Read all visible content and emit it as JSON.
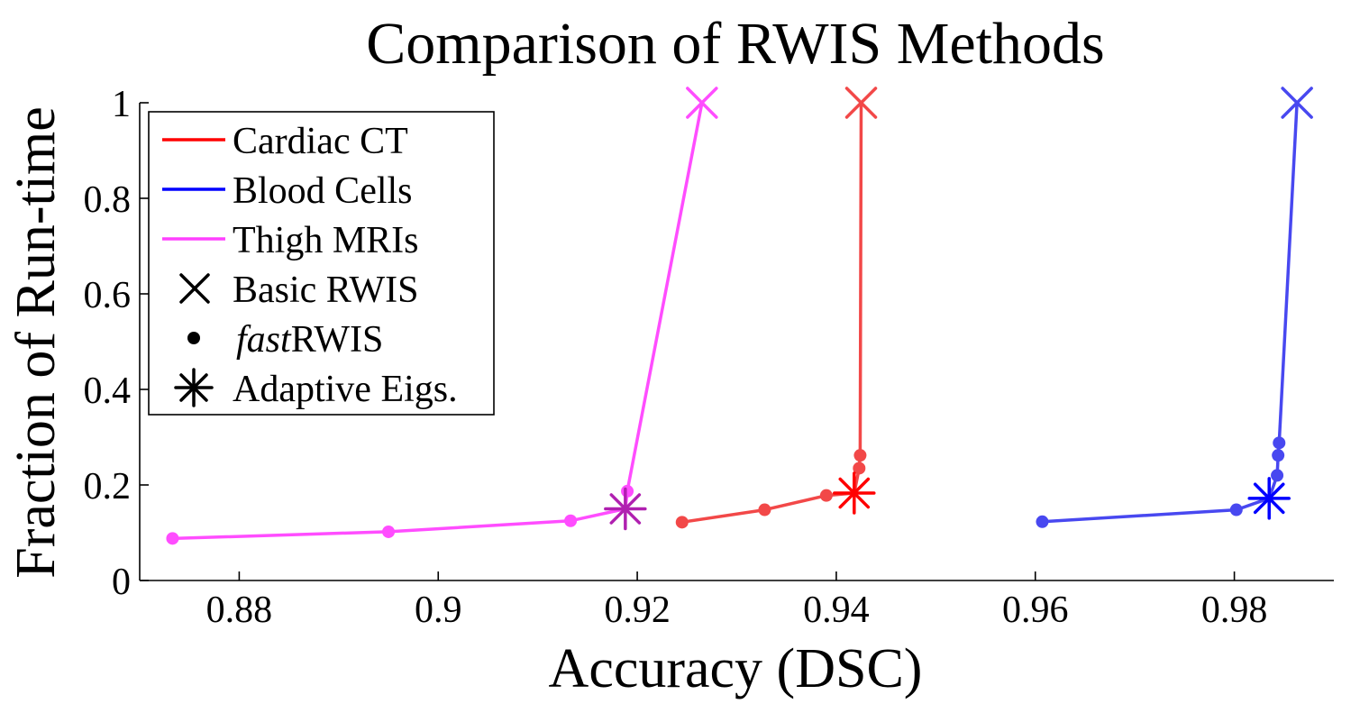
{
  "chart_data": {
    "type": "line",
    "title": "Comparison of RWIS Methods",
    "xlabel": "Accuracy (DSC)",
    "ylabel": "Fraction of Run-time",
    "xlim": [
      0.87,
      0.99
    ],
    "ylim": [
      0,
      1
    ],
    "xticks": [
      0.88,
      0.9,
      0.92,
      0.94,
      0.96,
      0.98
    ],
    "xtick_labels": [
      "0.88",
      "0.9",
      "0.92",
      "0.94",
      "0.96",
      "0.98"
    ],
    "yticks": [
      0,
      0.2,
      0.4,
      0.6,
      0.8,
      1
    ],
    "ytick_labels": [
      "0",
      "0.2",
      "0.4",
      "0.6",
      "0.8",
      "1"
    ],
    "grid": false,
    "legend_position": "top-left",
    "legend": [
      {
        "label": "Cardiac CT",
        "kind": "line",
        "color": "#ff0000"
      },
      {
        "label": "Blood Cells",
        "kind": "line",
        "color": "#0000ff"
      },
      {
        "label": "Thigh MRIs",
        "kind": "line",
        "color": "#ff40ff"
      },
      {
        "label": "Basic RWIS",
        "kind": "x-marker",
        "color": "#000000"
      },
      {
        "label_italic": "fast",
        "label": "RWIS",
        "kind": "dot-marker",
        "color": "#000000"
      },
      {
        "label": "Adaptive Eigs.",
        "kind": "asterisk-marker",
        "color": "#000000"
      }
    ],
    "series": [
      {
        "name": "Thigh MRIs",
        "color": "#ff4dff",
        "asterisk_color": "#b020b0",
        "fast_points": [
          {
            "x": 0.8733,
            "y": 0.088
          },
          {
            "x": 0.895,
            "y": 0.102
          },
          {
            "x": 0.9133,
            "y": 0.125
          },
          {
            "x": 0.919,
            "y": 0.187
          }
        ],
        "adaptive": {
          "x": 0.9188,
          "y": 0.15
        },
        "basic": {
          "x": 0.9265,
          "y": 1.0
        },
        "path": [
          {
            "x": 0.8733,
            "y": 0.088
          },
          {
            "x": 0.895,
            "y": 0.102
          },
          {
            "x": 0.9133,
            "y": 0.125
          },
          {
            "x": 0.9188,
            "y": 0.15
          },
          {
            "x": 0.919,
            "y": 0.187
          },
          {
            "x": 0.9265,
            "y": 1.0
          }
        ]
      },
      {
        "name": "Cardiac CT",
        "color": "#f24848",
        "asterisk_color": "#ff0000",
        "fast_points": [
          {
            "x": 0.9245,
            "y": 0.122
          },
          {
            "x": 0.9328,
            "y": 0.148
          },
          {
            "x": 0.939,
            "y": 0.178
          },
          {
            "x": 0.9423,
            "y": 0.235
          },
          {
            "x": 0.9424,
            "y": 0.262
          }
        ],
        "adaptive": {
          "x": 0.9418,
          "y": 0.183
        },
        "basic": {
          "x": 0.9425,
          "y": 1.0
        },
        "path": [
          {
            "x": 0.9245,
            "y": 0.122
          },
          {
            "x": 0.9328,
            "y": 0.148
          },
          {
            "x": 0.939,
            "y": 0.178
          },
          {
            "x": 0.9418,
            "y": 0.183
          },
          {
            "x": 0.9423,
            "y": 0.235
          },
          {
            "x": 0.9424,
            "y": 0.262
          },
          {
            "x": 0.9425,
            "y": 1.0
          }
        ]
      },
      {
        "name": "Blood Cells",
        "color": "#4848f0",
        "asterisk_color": "#0000ff",
        "fast_points": [
          {
            "x": 0.9607,
            "y": 0.123
          },
          {
            "x": 0.9802,
            "y": 0.148
          },
          {
            "x": 0.9843,
            "y": 0.22
          },
          {
            "x": 0.9844,
            "y": 0.262
          },
          {
            "x": 0.9845,
            "y": 0.288
          }
        ],
        "adaptive": {
          "x": 0.9835,
          "y": 0.172
        },
        "basic": {
          "x": 0.9863,
          "y": 1.0
        },
        "path": [
          {
            "x": 0.9607,
            "y": 0.123
          },
          {
            "x": 0.9802,
            "y": 0.148
          },
          {
            "x": 0.9835,
            "y": 0.172
          },
          {
            "x": 0.9843,
            "y": 0.22
          },
          {
            "x": 0.9844,
            "y": 0.262
          },
          {
            "x": 0.9845,
            "y": 0.288
          },
          {
            "x": 0.9863,
            "y": 1.0
          }
        ]
      }
    ]
  }
}
